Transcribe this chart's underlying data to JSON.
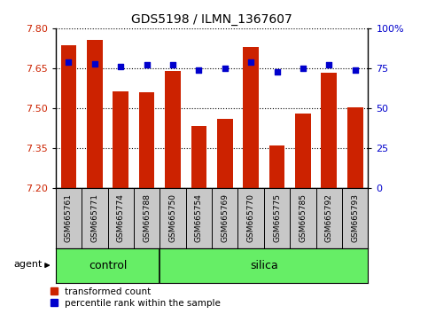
{
  "title": "GDS5198 / ILMN_1367607",
  "samples": [
    "GSM665761",
    "GSM665771",
    "GSM665774",
    "GSM665788",
    "GSM665750",
    "GSM665754",
    "GSM665769",
    "GSM665770",
    "GSM665775",
    "GSM665785",
    "GSM665792",
    "GSM665793"
  ],
  "red_values": [
    7.735,
    7.755,
    7.565,
    7.56,
    7.64,
    7.435,
    7.46,
    7.73,
    7.36,
    7.48,
    7.635,
    7.505
  ],
  "blue_values": [
    79,
    78,
    76,
    77,
    77,
    74,
    75,
    79,
    73,
    75,
    77,
    74
  ],
  "group_boundary": 4,
  "ylim_left": [
    7.2,
    7.8
  ],
  "ylim_right": [
    0,
    100
  ],
  "yticks_left": [
    7.2,
    7.35,
    7.5,
    7.65,
    7.8
  ],
  "yticks_right": [
    0,
    25,
    50,
    75,
    100
  ],
  "bar_color": "#cc2200",
  "dot_color": "#0000cc",
  "background_plot": "#ffffff",
  "background_xaxis": "#c8c8c8",
  "background_group": "#66ee66",
  "legend_red": "transformed count",
  "legend_blue": "percentile rank within the sample"
}
